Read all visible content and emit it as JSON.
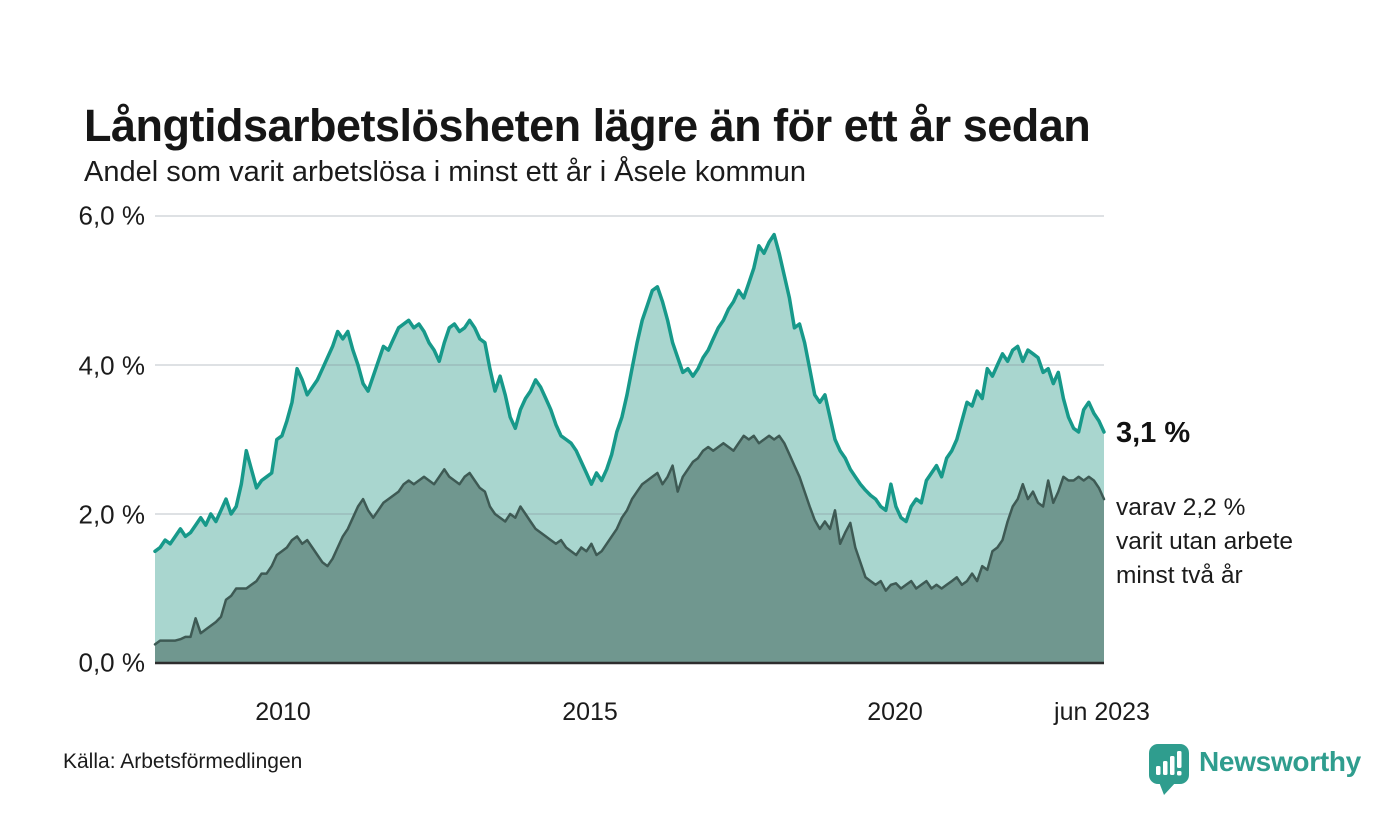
{
  "title": "Långtidsarbetslösheten lägre än för ett år sedan",
  "subtitle": "Andel som varit arbetslösa i minst ett år i Åsele kommun",
  "y_axis": {
    "labels": [
      "6,0 %",
      "4,0 %",
      "2,0 %",
      "0,0 %"
    ],
    "values": [
      6,
      4,
      2,
      0
    ]
  },
  "x_axis": {
    "ticks": [
      {
        "label": "2010"
      },
      {
        "label": "2015"
      },
      {
        "label": "2020"
      },
      {
        "label": "jun 2023"
      }
    ]
  },
  "annotations": {
    "latest_total": "3,1 %",
    "secondary_line1": "varav 2,2 %",
    "secondary_line2": "varit utan arbete",
    "secondary_line3": "minst två år"
  },
  "source": "Källa: Arbetsförmedlingen",
  "brand": {
    "name": "Newsworthy",
    "color": "#2f9d8e"
  },
  "colors": {
    "line_1yr": "#17998a",
    "fill_1yr": "#a9d6cf",
    "line_2yr": "#3e5a54",
    "fill_2yr": "#70978f",
    "gridline": "#e2e4e8",
    "axis": "#2d2d2d"
  },
  "chart_data": {
    "type": "area",
    "title": "Långtidsarbetslösheten lägre än för ett år sedan",
    "subtitle": "Andel som varit arbetslösa i minst ett år i Åsele kommun",
    "unit": "%",
    "frequency": "monthly",
    "x_start": "2007-11",
    "x_end": "2023-06",
    "ylim": [
      0,
      6.2
    ],
    "grid": [
      "2,0 %",
      "4,0 %",
      "6,0 %"
    ],
    "legend_position": "right-annotations",
    "series": [
      {
        "name": "Andel arbetslösa minst ett år",
        "latest_value": 3.1,
        "values": [
          1.5,
          1.55,
          1.65,
          1.6,
          1.7,
          1.8,
          1.7,
          1.75,
          1.85,
          1.95,
          1.85,
          2.0,
          1.9,
          2.05,
          2.2,
          2.0,
          2.1,
          2.4,
          2.85,
          2.6,
          2.35,
          2.45,
          2.5,
          2.55,
          3.0,
          3.05,
          3.25,
          3.5,
          3.95,
          3.8,
          3.6,
          3.7,
          3.8,
          3.95,
          4.1,
          4.25,
          4.45,
          4.35,
          4.45,
          4.2,
          4.0,
          3.75,
          3.65,
          3.85,
          4.05,
          4.25,
          4.2,
          4.35,
          4.5,
          4.55,
          4.6,
          4.5,
          4.55,
          4.45,
          4.3,
          4.2,
          4.05,
          4.3,
          4.5,
          4.55,
          4.45,
          4.5,
          4.6,
          4.5,
          4.35,
          4.3,
          3.95,
          3.65,
          3.85,
          3.6,
          3.3,
          3.15,
          3.4,
          3.55,
          3.65,
          3.8,
          3.7,
          3.55,
          3.4,
          3.2,
          3.05,
          3.0,
          2.95,
          2.85,
          2.7,
          2.55,
          2.4,
          2.55,
          2.45,
          2.6,
          2.8,
          3.1,
          3.3,
          3.6,
          3.95,
          4.3,
          4.6,
          4.8,
          5.0,
          5.05,
          4.85,
          4.6,
          4.3,
          4.1,
          3.9,
          3.95,
          3.85,
          3.95,
          4.1,
          4.2,
          4.35,
          4.5,
          4.6,
          4.75,
          4.85,
          5.0,
          4.9,
          5.1,
          5.3,
          5.6,
          5.5,
          5.65,
          5.75,
          5.5,
          5.2,
          4.9,
          4.5,
          4.55,
          4.3,
          3.95,
          3.6,
          3.5,
          3.6,
          3.3,
          3.0,
          2.85,
          2.75,
          2.6,
          2.5,
          2.4,
          2.32,
          2.25,
          2.2,
          2.1,
          2.05,
          2.4,
          2.1,
          1.95,
          1.9,
          2.1,
          2.2,
          2.15,
          2.45,
          2.55,
          2.65,
          2.5,
          2.75,
          2.85,
          3.0,
          3.25,
          3.5,
          3.45,
          3.65,
          3.55,
          3.95,
          3.85,
          4.0,
          4.15,
          4.05,
          4.2,
          4.25,
          4.05,
          4.2,
          4.15,
          4.1,
          3.9,
          3.95,
          3.75,
          3.9,
          3.55,
          3.3,
          3.15,
          3.1,
          3.4,
          3.5,
          3.35,
          3.25,
          3.1
        ]
      },
      {
        "name": "Andel arbetslösa minst två år",
        "latest_value": 2.2,
        "values": [
          0.25,
          0.3,
          0.3,
          0.3,
          0.3,
          0.32,
          0.35,
          0.35,
          0.6,
          0.4,
          0.45,
          0.5,
          0.55,
          0.62,
          0.85,
          0.9,
          1.0,
          1.0,
          1.0,
          1.05,
          1.1,
          1.2,
          1.2,
          1.3,
          1.45,
          1.5,
          1.55,
          1.65,
          1.7,
          1.6,
          1.65,
          1.55,
          1.45,
          1.35,
          1.3,
          1.4,
          1.55,
          1.7,
          1.8,
          1.95,
          2.1,
          2.2,
          2.05,
          1.95,
          2.05,
          2.15,
          2.2,
          2.25,
          2.3,
          2.4,
          2.45,
          2.4,
          2.45,
          2.5,
          2.45,
          2.4,
          2.5,
          2.6,
          2.5,
          2.45,
          2.4,
          2.5,
          2.55,
          2.45,
          2.35,
          2.3,
          2.1,
          2.0,
          1.95,
          1.9,
          2.0,
          1.95,
          2.1,
          2.0,
          1.9,
          1.8,
          1.75,
          1.7,
          1.65,
          1.6,
          1.65,
          1.55,
          1.5,
          1.45,
          1.55,
          1.5,
          1.6,
          1.45,
          1.5,
          1.6,
          1.7,
          1.8,
          1.95,
          2.05,
          2.2,
          2.3,
          2.4,
          2.45,
          2.5,
          2.55,
          2.4,
          2.5,
          2.65,
          2.3,
          2.5,
          2.6,
          2.7,
          2.75,
          2.85,
          2.9,
          2.85,
          2.9,
          2.95,
          2.9,
          2.85,
          2.95,
          3.05,
          3.0,
          3.05,
          2.95,
          3.0,
          3.05,
          3.0,
          3.05,
          2.95,
          2.8,
          2.65,
          2.5,
          2.3,
          2.1,
          1.92,
          1.8,
          1.9,
          1.8,
          2.05,
          1.6,
          1.75,
          1.88,
          1.55,
          1.35,
          1.15,
          1.1,
          1.05,
          1.1,
          0.97,
          1.05,
          1.07,
          1.0,
          1.05,
          1.1,
          1.0,
          1.05,
          1.1,
          1.0,
          1.05,
          1.0,
          1.05,
          1.1,
          1.15,
          1.05,
          1.1,
          1.2,
          1.1,
          1.3,
          1.25,
          1.5,
          1.55,
          1.65,
          1.9,
          2.1,
          2.2,
          2.4,
          2.2,
          2.3,
          2.15,
          2.1,
          2.45,
          2.15,
          2.3,
          2.5,
          2.45,
          2.45,
          2.5,
          2.45,
          2.5,
          2.45,
          2.35,
          2.2
        ]
      }
    ]
  }
}
